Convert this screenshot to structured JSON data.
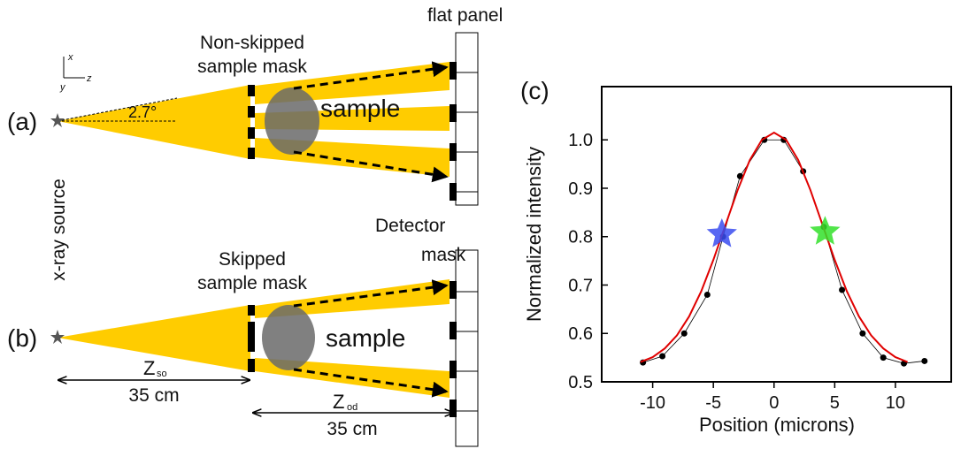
{
  "diagram": {
    "axes_icon": {
      "x": "x",
      "y": "y",
      "z": "z"
    },
    "source_label": "x-ray source",
    "panel_a": {
      "label": "(a)",
      "detector_label": "flat panel",
      "mask_label": [
        "Non-skipped",
        "sample mask"
      ],
      "angle": "2.7°",
      "sample": "sample"
    },
    "panel_b": {
      "label": "(b)",
      "detector_label": [
        "Detector",
        "mask"
      ],
      "mask_label": [
        "Skipped",
        "sample mask"
      ],
      "sample": "sample"
    },
    "dimensions": [
      {
        "symbol": "Z",
        "subscript": "so",
        "length": "35 cm"
      },
      {
        "symbol": "Z",
        "subscript": "od",
        "length": "35 cm"
      }
    ]
  },
  "chart_data": {
    "type": "line",
    "panel_label": "(c)",
    "x_label": "Position (microns)",
    "y_label": "Normalized intensity",
    "xlim": [
      -14.2,
      14.6
    ],
    "ylim": [
      0.5,
      1.11
    ],
    "xticks": [
      -10,
      -5,
      0,
      5,
      10
    ],
    "yticks": [
      0.5,
      0.6,
      0.7,
      0.8,
      0.9,
      {
        "value": 1,
        "label": "1.0"
      }
    ],
    "series": [
      {
        "color": "#000000",
        "marker": "circle",
        "x": [
          -10.8,
          -9.2,
          -7.4,
          -5.5,
          -4.2,
          -2.8,
          -0.8,
          0.8,
          2.4,
          4.1,
          5.6,
          7.3,
          9.0,
          10.7,
          12.4
        ],
        "values": [
          0.54,
          0.553,
          0.6,
          0.68,
          0.8,
          0.925,
          1.0,
          1.0,
          0.935,
          0.82,
          0.69,
          0.6,
          0.55,
          0.538,
          0.543
        ]
      },
      {
        "color": "#e00000",
        "marker": "none",
        "x": [
          -11,
          -10,
          -9,
          -8,
          -7,
          -6,
          -5,
          -4,
          -3,
          -2,
          -1,
          0,
          1,
          2,
          3,
          4,
          5,
          6,
          7,
          8,
          9,
          10,
          11
        ],
        "values": [
          0.541,
          0.551,
          0.569,
          0.596,
          0.635,
          0.687,
          0.752,
          0.824,
          0.896,
          0.958,
          1.0,
          1.015,
          1.0,
          0.958,
          0.896,
          0.824,
          0.752,
          0.687,
          0.635,
          0.596,
          0.569,
          0.551,
          0.541
        ]
      },
      {
        "color": "#3a4cf0",
        "marker": "star",
        "x": [
          -4.3
        ],
        "values": [
          0.805
        ]
      },
      {
        "color": "#33e02a",
        "marker": "star",
        "x": [
          4.2
        ],
        "values": [
          0.81
        ]
      }
    ]
  }
}
